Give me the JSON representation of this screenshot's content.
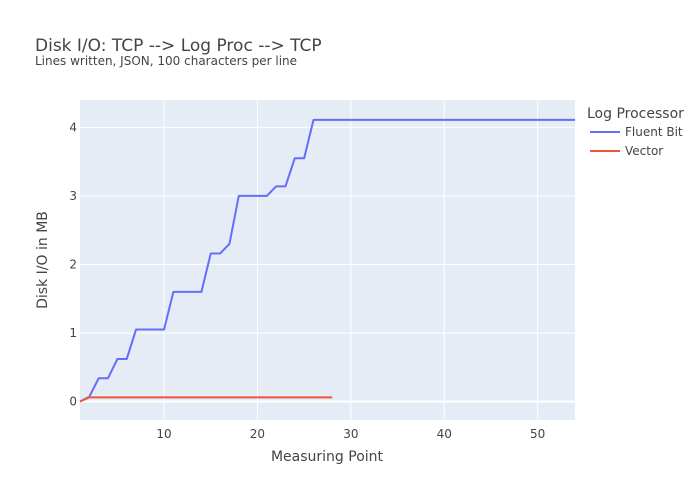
{
  "chart_data": {
    "type": "line",
    "title": "Disk I/O: TCP --> Log Proc --> TCP",
    "subtitle": "Lines written, JSON, 100 characters per line",
    "xlabel": "Measuring Point",
    "ylabel": "Disk I/O in MB",
    "xlim": [
      1,
      54
    ],
    "ylim": [
      -0.27,
      4.4
    ],
    "xticks": [
      10,
      20,
      30,
      40,
      50
    ],
    "yticks": [
      0,
      1,
      2,
      3,
      4
    ],
    "grid": true,
    "legend": {
      "title": "Log Processor",
      "position": "top-right"
    },
    "series": [
      {
        "name": "Fluent Bit",
        "color": "#636efa",
        "x": [
          1,
          2,
          3,
          4,
          5,
          6,
          7,
          8,
          9,
          10,
          11,
          12,
          13,
          14,
          15,
          16,
          17,
          18,
          19,
          20,
          21,
          22,
          23,
          24,
          25,
          26,
          27,
          54
        ],
        "y": [
          0,
          0.07,
          0.34,
          0.34,
          0.62,
          0.62,
          1.05,
          1.05,
          1.05,
          1.05,
          1.6,
          1.6,
          1.6,
          1.6,
          2.16,
          2.16,
          2.3,
          3.0,
          3.0,
          3.0,
          3.0,
          3.14,
          3.14,
          3.55,
          3.55,
          4.11,
          4.11,
          4.11
        ]
      },
      {
        "name": "Vector",
        "color": "#ef553b",
        "x": [
          1,
          2,
          3,
          28
        ],
        "y": [
          0,
          0.06,
          0.06,
          0.06
        ]
      }
    ]
  }
}
